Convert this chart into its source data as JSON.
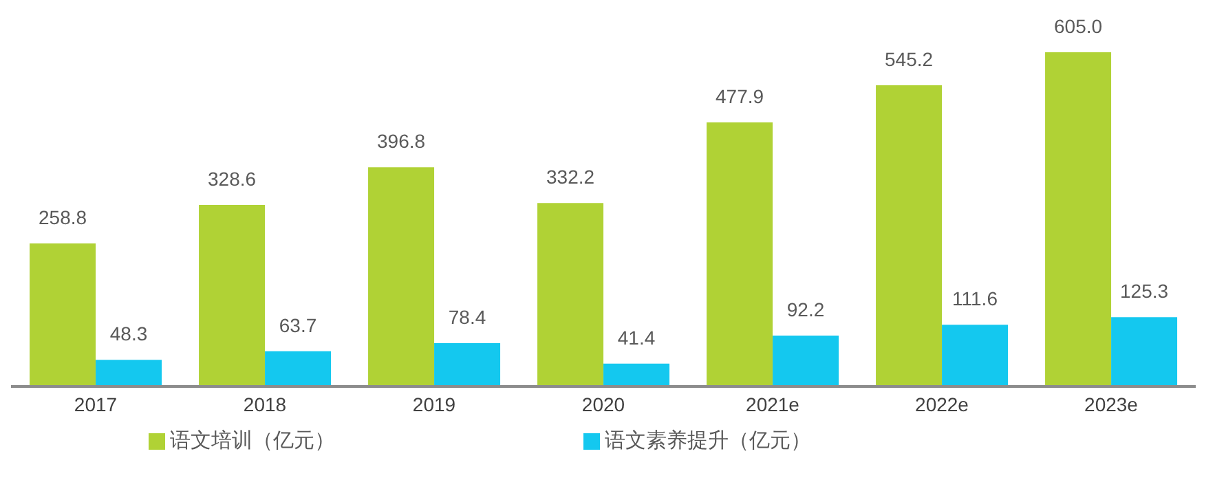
{
  "chart_data": {
    "type": "bar",
    "categories": [
      "2017",
      "2018",
      "2019",
      "2020",
      "2021e",
      "2022e",
      "2023e"
    ],
    "series": [
      {
        "name": "语文培训（亿元）",
        "color": "#b0d235",
        "values": [
          258.8,
          328.6,
          396.8,
          332.2,
          477.9,
          545.2,
          605.0
        ],
        "value_labels": [
          "258.8",
          "328.6",
          "396.8",
          "332.2",
          "477.9",
          "545.2",
          "605.0"
        ]
      },
      {
        "name": "语文素养提升（亿元）",
        "color": "#14c8ef",
        "values": [
          48.3,
          63.7,
          78.4,
          41.4,
          92.2,
          111.6,
          125.3
        ],
        "value_labels": [
          "48.3",
          "63.7",
          "78.4",
          "41.4",
          "92.2",
          "111.6",
          "125.3"
        ]
      }
    ],
    "legend": "bottom",
    "grid": false
  }
}
